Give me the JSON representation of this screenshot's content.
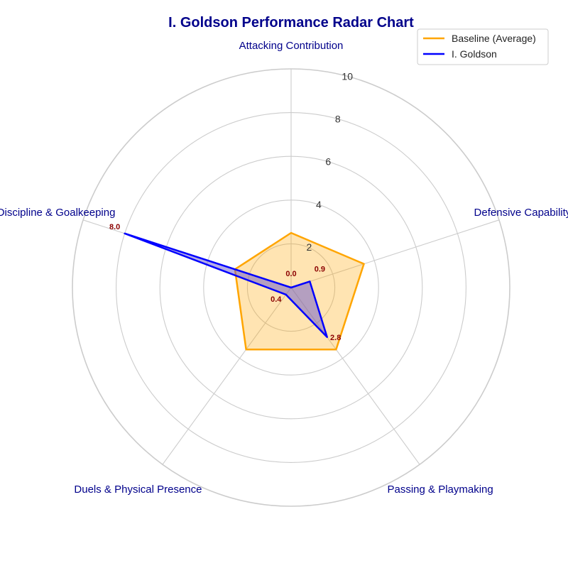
{
  "chart_data": {
    "type": "radar",
    "title": "I. Goldson Performance Radar Chart",
    "categories": [
      "Attacking Contribution",
      "Defensive Capability",
      "Passing & Playmaking",
      "Duels & Physical Presence",
      "Discipline & Goalkeeping"
    ],
    "rlim": [
      0,
      10
    ],
    "r_ticks": [
      "2",
      "4",
      "6",
      "8",
      "10"
    ],
    "grid": true,
    "legend_position": "top-right",
    "series": [
      {
        "name": "Baseline (Average)",
        "values": [
          2.5,
          3.5,
          3.5,
          3.5,
          2.7
        ],
        "color": "#ffa500",
        "fill": "#ffa500"
      },
      {
        "name": "I. Goldson",
        "values": [
          0.0,
          0.9,
          2.8,
          0.4,
          8.0
        ],
        "color": "#0000ff",
        "fill": "#6a5acd"
      }
    ],
    "data_labels": [
      "0.0",
      "0.9",
      "2.8",
      "0.4",
      "8.0"
    ]
  }
}
